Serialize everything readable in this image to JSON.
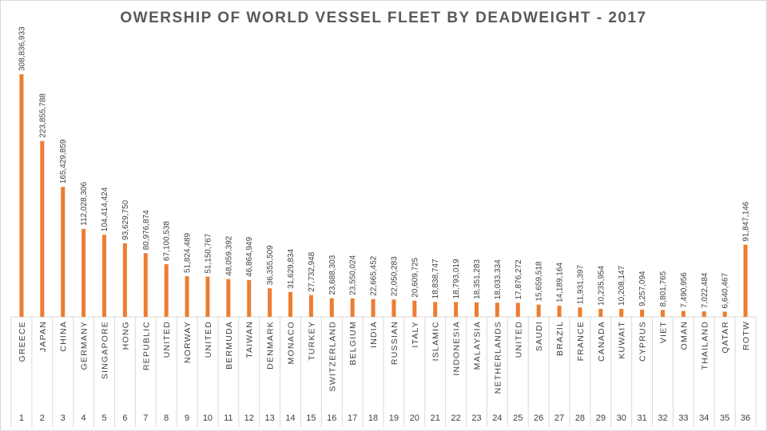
{
  "chart_data": {
    "type": "bar",
    "title": "OWERSHIP OF WORLD VESSEL FLEET BY DEADWEIGHT - 2017",
    "xlabel": "",
    "ylabel": "",
    "ylim": [
      0,
      310000000
    ],
    "grid": false,
    "legend": "none",
    "bar_color": "#ed7d31",
    "categories": [
      "GREECE",
      "JAPAN",
      "CHINA",
      "GERMANY",
      "SINGAPORE",
      "HONG",
      "REPUBLIC",
      "UNITED",
      "NORWAY",
      "UNITED",
      "BERMUDA",
      "TAIWAN",
      "DENMARK",
      "MONACO",
      "TURKEY",
      "SWITZERLAND",
      "BELGIUM",
      "INDIA",
      "RUSSIAN",
      "ITALY",
      "ISLAMIC",
      "INDONESIA",
      "MALAYSIA",
      "NETHERLANDS",
      "UNITED",
      "SAUDI",
      "BRAZIL",
      "FRANCE",
      "CANADA",
      "KUWAIT",
      "CYPRUS",
      "VIET",
      "OMAN",
      "THAILAND",
      "QATAR",
      "ROTW"
    ],
    "indices": [
      "1",
      "2",
      "3",
      "4",
      "5",
      "6",
      "7",
      "8",
      "9",
      "10",
      "11",
      "12",
      "13",
      "14",
      "15",
      "16",
      "17",
      "18",
      "19",
      "20",
      "21",
      "22",
      "23",
      "24",
      "25",
      "26",
      "27",
      "28",
      "29",
      "30",
      "31",
      "32",
      "33",
      "34",
      "35",
      "36"
    ],
    "values": [
      308836933,
      223855788,
      165429859,
      112028306,
      104414424,
      93629750,
      80976874,
      67100538,
      51824489,
      51150767,
      48059392,
      46864949,
      36355509,
      31629834,
      27732948,
      23688303,
      23550024,
      22665452,
      22050283,
      20609725,
      18838747,
      18793019,
      18351283,
      18033334,
      17876272,
      15659518,
      14189164,
      11931397,
      10235954,
      10208147,
      9257094,
      8801765,
      7490956,
      7022484,
      6640467,
      91847146
    ],
    "value_labels": [
      "308,836,933",
      "223,855,788",
      "165,429,859",
      "112,028,306",
      "104,414,424",
      "93,629,750",
      "80,976,874",
      "67,100,538",
      "51,824,489",
      "51,150,767",
      "48,059,392",
      "46,864,949",
      "36,355,509",
      "31,629,834",
      "27,732,948",
      "23,688,303",
      "23,550,024",
      "22,665,452",
      "22,050,283",
      "20,609,725",
      "18,838,747",
      "18,793,019",
      "18,351,283",
      "18,033,334",
      "17,876,272",
      "15,659,518",
      "14,189,164",
      "11,931,397",
      "10,235,954",
      "10,208,147",
      "9,257,094",
      "8,801,765",
      "7,490,956",
      "7,022,484",
      "6,640,467",
      "91,847,146"
    ]
  }
}
